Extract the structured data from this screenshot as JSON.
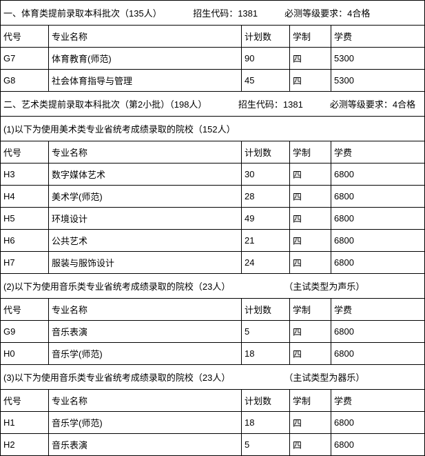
{
  "section1": {
    "header": "一、体育类提前录取本科批次（135人）　　　　招生代码：1381　　　必测等级要求：4合格",
    "cols": {
      "code": "代号",
      "name": "专业名称",
      "plan": "计划数",
      "system": "学制",
      "fee": "学费"
    },
    "rows": [
      {
        "code": "G7",
        "name": "体育教育(师范)",
        "plan": "90",
        "system": "四",
        "fee": "5300"
      },
      {
        "code": "G8",
        "name": "社会体育指导与管理",
        "plan": "45",
        "system": "四",
        "fee": "5300"
      }
    ]
  },
  "section2": {
    "header": "二、艺术类提前录取本科批次（第2小批）（198人）　　　　招生代码：1381　　　必测等级要求：4合格",
    "sub1": {
      "title": "(1)以下为使用美术类专业省统考成绩录取的院校（152人）",
      "cols": {
        "code": "代号",
        "name": "专业名称",
        "plan": "计划数",
        "system": "学制",
        "fee": "学费"
      },
      "rows": [
        {
          "code": "H3",
          "name": "数字媒体艺术",
          "plan": "30",
          "system": "四",
          "fee": "6800"
        },
        {
          "code": "H4",
          "name": "美术学(师范)",
          "plan": "28",
          "system": "四",
          "fee": "6800"
        },
        {
          "code": "H5",
          "name": "环境设计",
          "plan": "49",
          "system": "四",
          "fee": "6800"
        },
        {
          "code": "H6",
          "name": "公共艺术",
          "plan": "21",
          "system": "四",
          "fee": "6800"
        },
        {
          "code": "H7",
          "name": "服装与服饰设计",
          "plan": "24",
          "system": "四",
          "fee": "6800"
        }
      ]
    },
    "sub2": {
      "title": "(2)以下为使用音乐类专业省统考成绩录取的院校（23人）　　　　　　　（主试类型为声乐）",
      "cols": {
        "code": "代号",
        "name": "专业名称",
        "plan": "计划数",
        "system": "学制",
        "fee": "学费"
      },
      "rows": [
        {
          "code": "G9",
          "name": "音乐表演",
          "plan": "5",
          "system": "四",
          "fee": "6800"
        },
        {
          "code": "H0",
          "name": "音乐学(师范)",
          "plan": "18",
          "system": "四",
          "fee": "6800"
        }
      ]
    },
    "sub3": {
      "title": "(3)以下为使用音乐类专业省统考成绩录取的院校（23人）　　　　　　　（主试类型为器乐）",
      "cols": {
        "code": "代号",
        "name": "专业名称",
        "plan": "计划数",
        "system": "学制",
        "fee": "学费"
      },
      "rows": [
        {
          "code": "H1",
          "name": "音乐学(师范)",
          "plan": "18",
          "system": "四",
          "fee": "6800"
        },
        {
          "code": "H2",
          "name": "音乐表演",
          "plan": "5",
          "system": "四",
          "fee": "6800"
        }
      ]
    }
  },
  "styling": {
    "border_color": "#000000",
    "background_color": "#ffffff",
    "text_color": "#000000",
    "font_size": 13,
    "col_widths": {
      "code": 70,
      "name": 280,
      "plan": 70,
      "system": 60
    }
  }
}
